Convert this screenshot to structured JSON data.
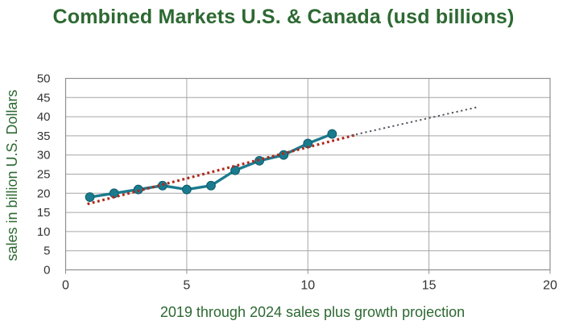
{
  "chart_data": {
    "type": "line",
    "title": "Combined Markets U.S. & Canada (usd billions)",
    "xlabel": "2019 through 2024 sales plus growth  projection",
    "ylabel": "sales in billion U.S. Dollars",
    "xlim": [
      0,
      20
    ],
    "ylim": [
      0,
      50
    ],
    "x_ticks": [
      0,
      5,
      10,
      15,
      20
    ],
    "y_ticks": [
      0,
      5,
      10,
      15,
      20,
      25,
      30,
      35,
      40,
      45,
      50
    ],
    "grid": true,
    "legend": "none",
    "series": [
      {
        "name": "sales-actual",
        "label": "sales 2019 through 2024",
        "style": "solid-line-markers",
        "color": "#1a7b8e",
        "x": [
          1,
          2,
          3,
          4,
          5,
          6,
          7,
          8,
          9,
          10,
          11
        ],
        "y": [
          19,
          20,
          21,
          22,
          21,
          22,
          26,
          28.5,
          30,
          33,
          35.5
        ]
      },
      {
        "name": "trendline",
        "label": "linear trendline",
        "style": "dotted",
        "color": "#b2271a",
        "x": [
          0.9,
          12
        ],
        "y": [
          17.2,
          35.3
        ]
      },
      {
        "name": "growth-projection",
        "label": "growth projection",
        "style": "dotted-fine",
        "color": "#54555e",
        "x": [
          11.8,
          17
        ],
        "y": [
          35.1,
          42.5
        ]
      }
    ],
    "colors": {
      "title": "#2d6932",
      "axis_title": "#2d6932",
      "tick_label": "#333333",
      "grid": "#a6a6a6",
      "border": "#8f8f8f",
      "background": "#ffffff"
    }
  }
}
